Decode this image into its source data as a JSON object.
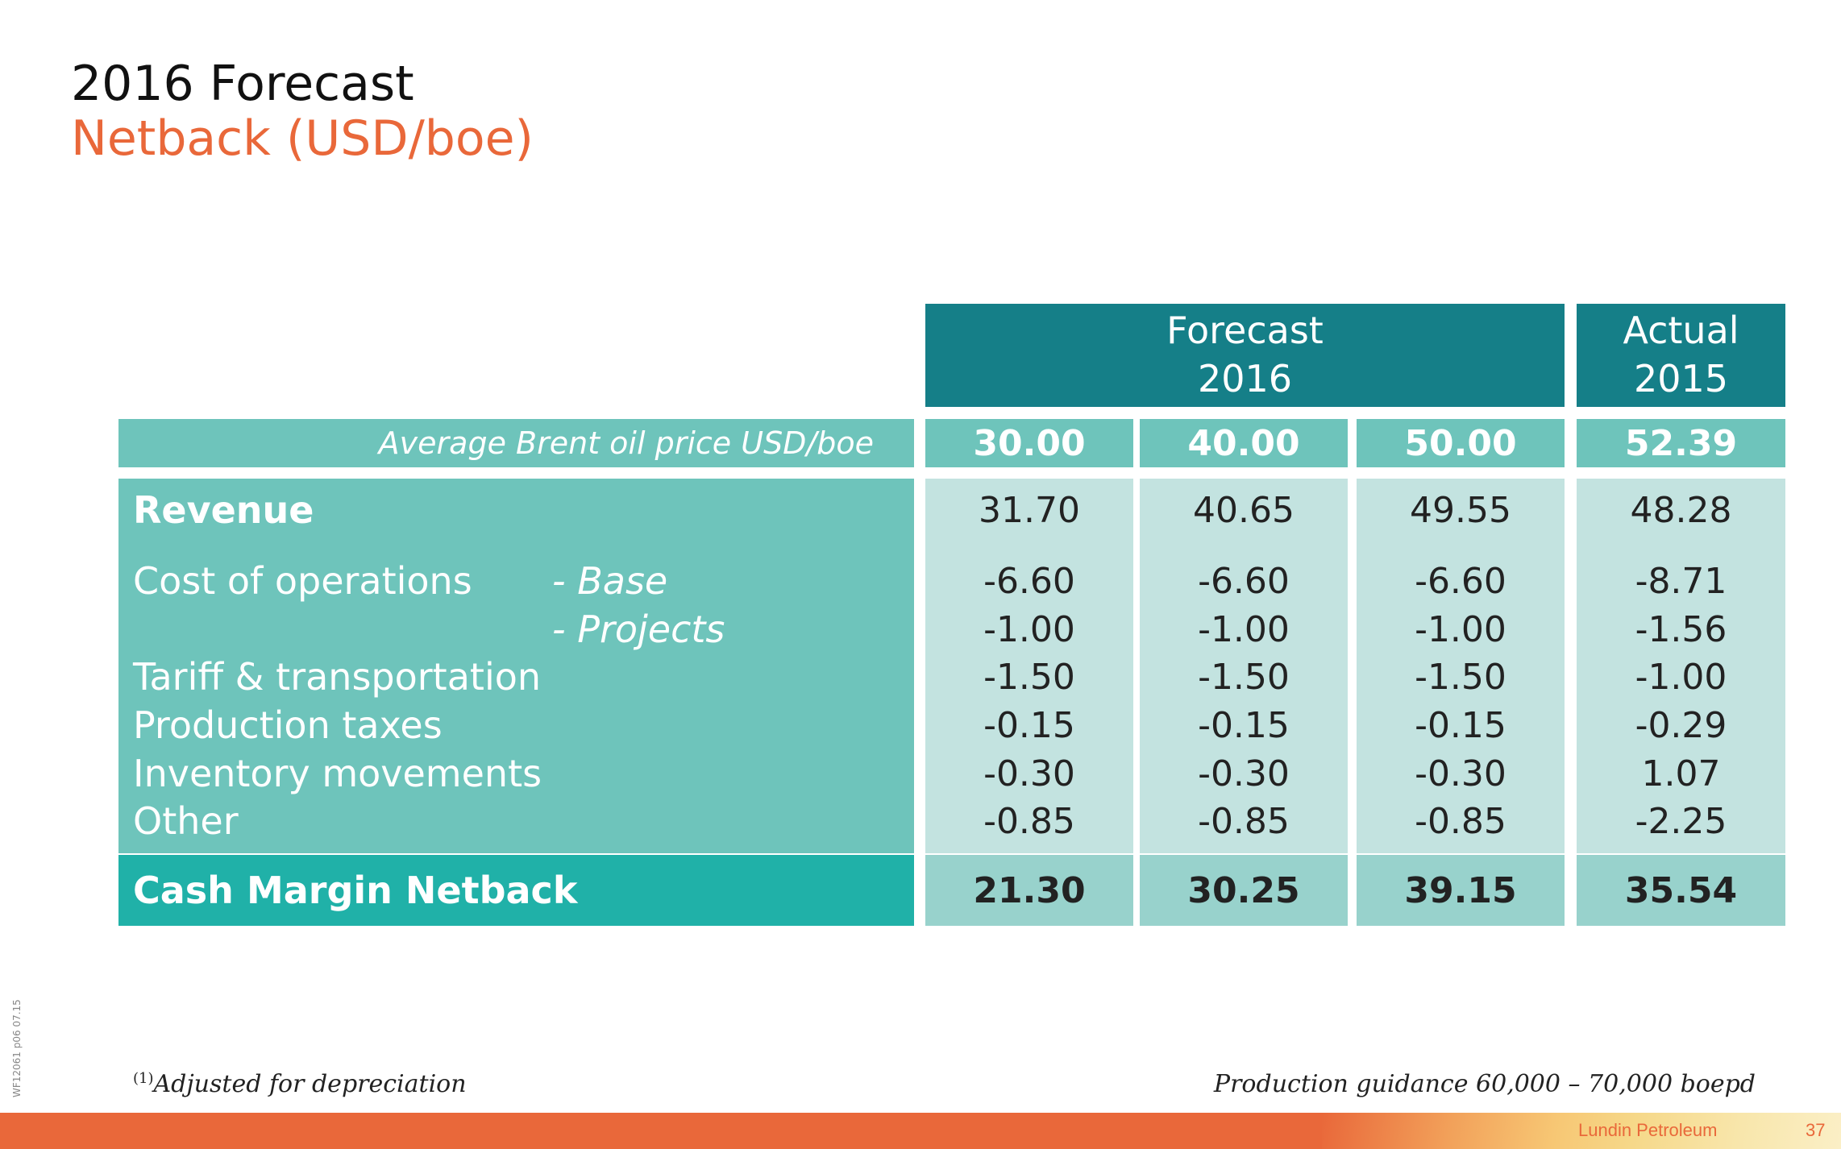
{
  "title": {
    "line1": "2016 Forecast",
    "line2": "Netback (USD/boe)"
  },
  "header": {
    "forecast": {
      "line1": "Forecast",
      "line2": "2016"
    },
    "actual": {
      "line1": "Actual",
      "line2": "2015"
    }
  },
  "brent": {
    "label": "Average Brent oil price USD/boe",
    "values": [
      "30.00",
      "40.00",
      "50.00",
      "52.39"
    ]
  },
  "rows": [
    {
      "label": "Revenue",
      "sub": "",
      "values": [
        "31.70",
        "40.65",
        "49.55",
        "48.28"
      ]
    },
    {
      "label": "Cost of operations",
      "sub": "- Base",
      "values": [
        "-6.60",
        "-6.60",
        "-6.60",
        "-8.71"
      ]
    },
    {
      "label": "",
      "sub": "- Projects",
      "values": [
        "-1.00",
        "-1.00",
        "-1.00",
        "-1.56"
      ]
    },
    {
      "label": "Tariff & transportation",
      "sub": "",
      "values": [
        "-1.50",
        "-1.50",
        "-1.50",
        "-1.00"
      ]
    },
    {
      "label": "Production taxes",
      "sub": "",
      "values": [
        "-0.15",
        "-0.15",
        "-0.15",
        "-0.29"
      ]
    },
    {
      "label": "Inventory movements",
      "sub": "",
      "values": [
        "-0.30",
        "-0.30",
        "-0.30",
        "1.07"
      ]
    },
    {
      "label": "Other",
      "sub": "",
      "values": [
        "-0.85",
        "-0.85",
        "-0.85",
        "-2.25"
      ]
    }
  ],
  "total": {
    "label": "Cash Margin Netback",
    "values": [
      "21.30",
      "30.25",
      "39.15",
      "35.54"
    ]
  },
  "footnote": {
    "marker": "(1)",
    "text": "Adjusted for depreciation"
  },
  "guidance": "Production guidance 60,000 – 70,000 boepd",
  "side_code": "WF12061   p06   07.15",
  "footer": {
    "company": "Lundin Petroleum",
    "page": "37"
  },
  "colors": {
    "accent_orange": "#e9683a",
    "header_teal": "#157f88",
    "label_teal": "#6ec4bb",
    "value_light": "#c3e3e0",
    "total_teal": "#20b1a8",
    "total_value": "#98d2cc"
  }
}
